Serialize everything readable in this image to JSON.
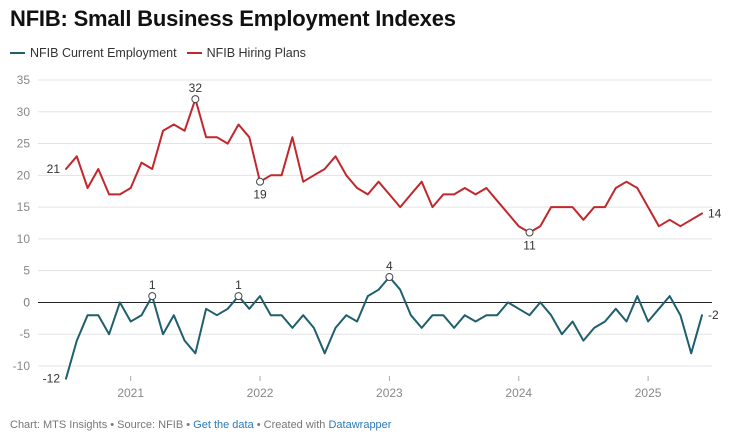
{
  "chart_data": {
    "type": "line",
    "title": "NFIB: Small Business Employment Indexes",
    "xlabel": "",
    "ylabel": "",
    "ylim": [
      -12,
      35
    ],
    "yticks": [
      -10,
      -5,
      0,
      5,
      10,
      15,
      20,
      25,
      30,
      35
    ],
    "xticks": [
      {
        "label": "2021",
        "x": 2021.0
      },
      {
        "label": "2022",
        "x": 2022.0
      },
      {
        "label": "2023",
        "x": 2023.0
      },
      {
        "label": "2024",
        "x": 2024.0
      },
      {
        "label": "2025",
        "x": 2025.0
      }
    ],
    "x_start": 2020.5,
    "x_step_months": 1,
    "series": [
      {
        "name": "NFIB Current Employment",
        "color": "#1f5f6e",
        "values": [
          -12,
          -6,
          -2,
          -2,
          -5,
          0,
          -3,
          -2,
          1,
          -5,
          -2,
          -6,
          -8,
          -1,
          -2,
          -1,
          1,
          -1,
          1,
          -2,
          -2,
          -4,
          -2,
          -4,
          -8,
          -4,
          -2,
          -3,
          1,
          2,
          4,
          2,
          -2,
          -4,
          -2,
          -2,
          -4,
          -2,
          -3,
          -2,
          -2,
          0,
          -1,
          -2,
          0,
          -2,
          -5,
          -3,
          -6,
          -4,
          -3,
          -1,
          -3,
          1,
          -3,
          -1,
          1,
          -2,
          -8,
          -2
        ]
      },
      {
        "name": "NFIB Hiring Plans",
        "color": "#c1272d",
        "values": [
          21,
          23,
          18,
          21,
          17,
          17,
          18,
          22,
          21,
          27,
          28,
          27,
          32,
          26,
          26,
          25,
          28,
          26,
          19,
          20,
          20,
          26,
          19,
          20,
          21,
          23,
          20,
          18,
          17,
          19,
          17,
          15,
          17,
          19,
          15,
          17,
          17,
          18,
          17,
          18,
          16,
          14,
          12,
          11,
          12,
          15,
          15,
          15,
          13,
          15,
          15,
          18,
          19,
          18,
          15,
          12,
          13,
          12,
          13,
          14
        ]
      }
    ],
    "annotations": [
      {
        "series": 1,
        "index": 0,
        "label": "21",
        "marker": false,
        "pos": "left"
      },
      {
        "series": 1,
        "index": 12,
        "label": "32",
        "marker": true,
        "pos": "above"
      },
      {
        "series": 1,
        "index": 18,
        "label": "19",
        "marker": true,
        "pos": "below"
      },
      {
        "series": 1,
        "index": 43,
        "label": "11",
        "marker": true,
        "pos": "below"
      },
      {
        "series": 1,
        "index": 59,
        "label": "14",
        "marker": false,
        "pos": "right"
      },
      {
        "series": 0,
        "index": 0,
        "label": "-12",
        "marker": false,
        "pos": "left"
      },
      {
        "series": 0,
        "index": 8,
        "label": "1",
        "marker": true,
        "pos": "above"
      },
      {
        "series": 0,
        "index": 16,
        "label": "1",
        "marker": true,
        "pos": "above"
      },
      {
        "series": 0,
        "index": 30,
        "label": "4",
        "marker": true,
        "pos": "above"
      },
      {
        "series": 0,
        "index": 59,
        "label": "-2",
        "marker": false,
        "pos": "right"
      }
    ]
  },
  "footer": {
    "chart_prefix": "Chart: MTS Insights • Source: NFIB • ",
    "data_link": "Get the data",
    "created_with": " • Created with ",
    "tool_link": "Datawrapper"
  }
}
